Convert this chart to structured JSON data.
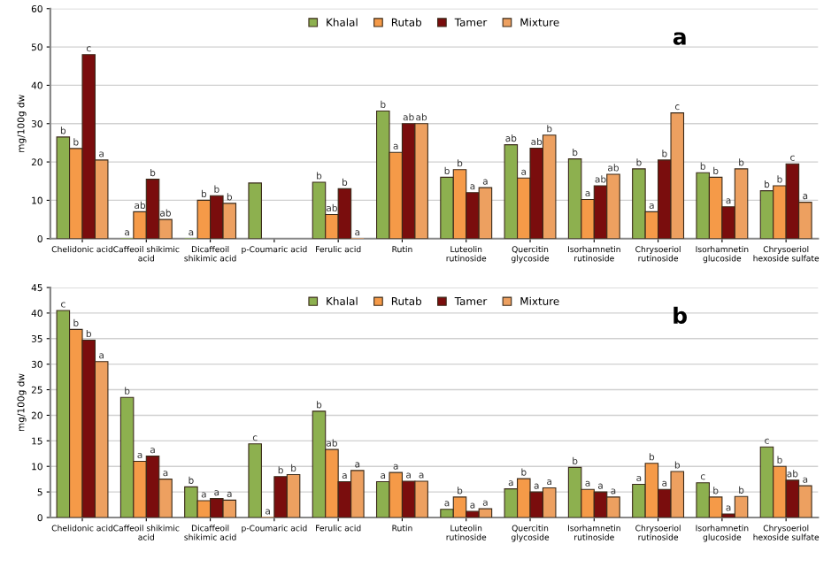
{
  "chart_data": [
    {
      "type": "bar",
      "ylabel": "mg/100g dw",
      "annotations": [
        "a"
      ],
      "legend": "top",
      "grid": "y",
      "ylim": [
        0,
        60
      ],
      "yticks": [
        0,
        10,
        20,
        30,
        40,
        50,
        60
      ],
      "categories": [
        "Chelidonic acid",
        "Caffeoil shikimic\nacid",
        "Dicaffeoil\nshikimic acid",
        "p-Coumaric acid",
        "Ferulic acid",
        "Rutin",
        "Luteolin\nrutinoside",
        "Quercitin\nglycoside",
        "Isorhamnetin\nrutinoside",
        "Chrysoeriol\nrutinoside",
        "Isorhamnetin\nglucoside",
        "Chrysoeriol\nhexoside sulfate"
      ],
      "series": [
        {
          "name": "Khalal",
          "color": "#8db04f",
          "values": [
            26.5,
            0,
            0,
            14.5,
            14.7,
            33.3,
            16,
            24.5,
            20.8,
            18.2,
            17.2,
            12.5
          ],
          "value_labels": [
            "b",
            "a",
            "a",
            null,
            "b",
            "b",
            "b",
            "ab",
            "b",
            "b",
            "b",
            "b"
          ]
        },
        {
          "name": "Rutab",
          "color": "#f59a48",
          "values": [
            23.5,
            7,
            10,
            null,
            6.3,
            22.5,
            18,
            15.8,
            10.2,
            7,
            16,
            13.8
          ],
          "value_labels": [
            "b",
            "ab",
            "b",
            null,
            "ab",
            "a",
            "b",
            "a",
            "a",
            "a",
            "b",
            "b"
          ]
        },
        {
          "name": "Tamer",
          "color": "#7a0d0d",
          "values": [
            48,
            15.5,
            11.2,
            null,
            13,
            30,
            12,
            23.6,
            13.8,
            20.5,
            8.3,
            19.5
          ],
          "value_labels": [
            "c",
            "b",
            "b",
            null,
            "b",
            "ab",
            "a",
            "ab",
            "ab",
            "b",
            "a",
            "c"
          ]
        },
        {
          "name": "Mixture",
          "color": "#eda060",
          "values": [
            20.5,
            5,
            9.2,
            null,
            0,
            30,
            13.3,
            27,
            16.8,
            32.8,
            18.2,
            9.5
          ],
          "value_labels": [
            "a",
            "ab",
            "b",
            null,
            "a",
            "ab",
            "a",
            "b",
            "ab",
            "c",
            "b",
            "a"
          ]
        }
      ]
    },
    {
      "type": "bar",
      "ylabel": "mg/100g dw",
      "annotations": [
        "b"
      ],
      "legend": "top",
      "grid": "y",
      "ylim": [
        0,
        45
      ],
      "yticks": [
        0,
        5,
        10,
        15,
        20,
        25,
        30,
        35,
        40,
        45
      ],
      "categories": [
        "Chelidonic acid",
        "Caffeoil shikimic\nacid",
        "Dicaffeoil\nshikimic acid",
        "p-Coumaric acid",
        "Ferulic acid",
        "Rutin",
        "Luteolin\nrutinoside",
        "Quercitin\nglycoside",
        "Isorhamnetin\nrutinoside",
        "Chrysoeriol\nrutinoside",
        "Isorhamnetin\nglucoside",
        "Chrysoeriol\nhexoside sulfate"
      ],
      "series": [
        {
          "name": "Khalal",
          "color": "#8db04f",
          "values": [
            40.5,
            23.5,
            6,
            14.4,
            20.8,
            7,
            1.6,
            5.6,
            9.8,
            6.5,
            6.8,
            13.8
          ],
          "value_labels": [
            "c",
            "b",
            "b",
            "c",
            "b",
            "a",
            "a",
            "a",
            "b",
            "a",
            "c",
            "c"
          ]
        },
        {
          "name": "Rutab",
          "color": "#f59a48",
          "values": [
            36.8,
            11,
            3.3,
            0,
            13.3,
            8.8,
            4,
            7.6,
            5.5,
            10.6,
            4,
            10
          ],
          "value_labels": [
            "b",
            "a",
            "a",
            "a",
            "ab",
            "a",
            "b",
            "b",
            "a",
            "b",
            "b",
            "b"
          ]
        },
        {
          "name": "Tamer",
          "color": "#7a0d0d",
          "values": [
            34.7,
            12,
            3.7,
            8,
            7,
            7.1,
            1.2,
            5,
            5,
            5.5,
            0.7,
            7.3
          ],
          "value_labels": [
            "b",
            "a",
            "a",
            "b",
            "a",
            "a",
            "a",
            "a",
            "a",
            "a",
            "a",
            "ab"
          ]
        },
        {
          "name": "Mixture",
          "color": "#eda060",
          "values": [
            30.5,
            7.5,
            3.4,
            8.4,
            9.2,
            7.1,
            1.7,
            5.8,
            4,
            9,
            4.1,
            6.2
          ],
          "value_labels": [
            "a",
            "a",
            "a",
            "b",
            "a",
            "a",
            "a",
            "a",
            "a",
            "b",
            "b",
            "a"
          ]
        }
      ]
    }
  ]
}
